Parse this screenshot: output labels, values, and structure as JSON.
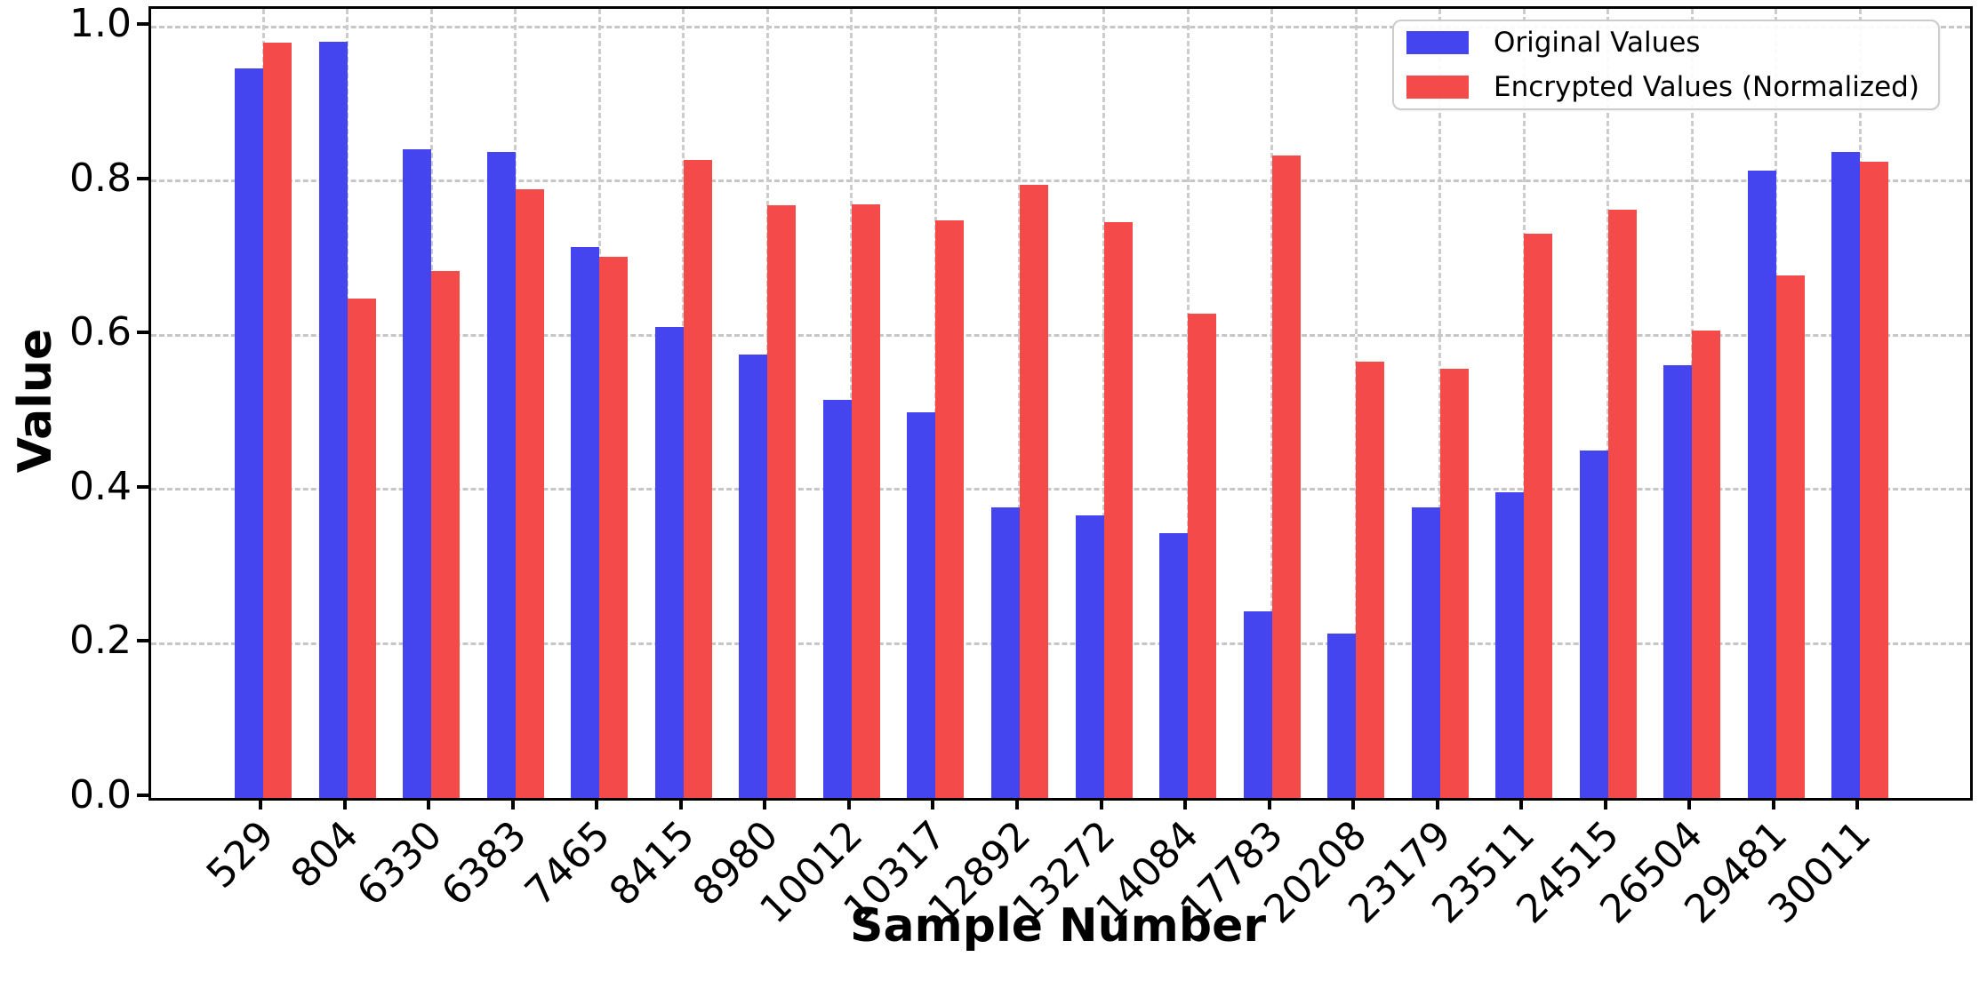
{
  "figure": {
    "background_color": "#ffffff",
    "spine_color": "#000000",
    "grid_color": "#c8c8c8"
  },
  "axes": {
    "ylabel": "Value",
    "xlabel": "Sample Number"
  },
  "legend": {
    "position": "upper right",
    "items": [
      {
        "label": "Original Values",
        "color": "#4545f0",
        "swatch": "legend-swatch-blue"
      },
      {
        "label": "Encrypted Values (Normalized)",
        "color": "#f54a4a",
        "swatch": "legend-swatch-red"
      }
    ]
  },
  "chart_data": {
    "type": "bar",
    "title": "",
    "xlabel": "Sample Number",
    "ylabel": "Value",
    "grid": true,
    "legend_position": "upper right",
    "ylim": [
      0.0,
      1.0
    ],
    "yticks": [
      0.0,
      0.2,
      0.4,
      0.6,
      0.8,
      1.0
    ],
    "ytick_labels": [
      "0.0",
      "0.2",
      "0.4",
      "0.6",
      "0.8",
      "1.0"
    ],
    "categories": [
      "529",
      "804",
      "6330",
      "6383",
      "7465",
      "8415",
      "8980",
      "10012",
      "10317",
      "12892",
      "13272",
      "14084",
      "17783",
      "20208",
      "23179",
      "23511",
      "24515",
      "26504",
      "29481",
      "30011"
    ],
    "series": [
      {
        "name": "Original Values",
        "color": "#4545f0",
        "values": [
          0.946,
          0.98,
          0.841,
          0.837,
          0.714,
          0.611,
          0.575,
          0.516,
          0.5,
          0.377,
          0.366,
          0.343,
          0.242,
          0.213,
          0.377,
          0.396,
          0.45,
          0.561,
          0.813,
          0.837
        ]
      },
      {
        "name": "Encrypted Values (Normalized)",
        "color": "#f54a4a",
        "values": [
          0.979,
          0.647,
          0.683,
          0.789,
          0.702,
          0.827,
          0.768,
          0.77,
          0.749,
          0.795,
          0.746,
          0.628,
          0.833,
          0.566,
          0.557,
          0.732,
          0.763,
          0.606,
          0.677,
          0.825
        ]
      }
    ]
  }
}
